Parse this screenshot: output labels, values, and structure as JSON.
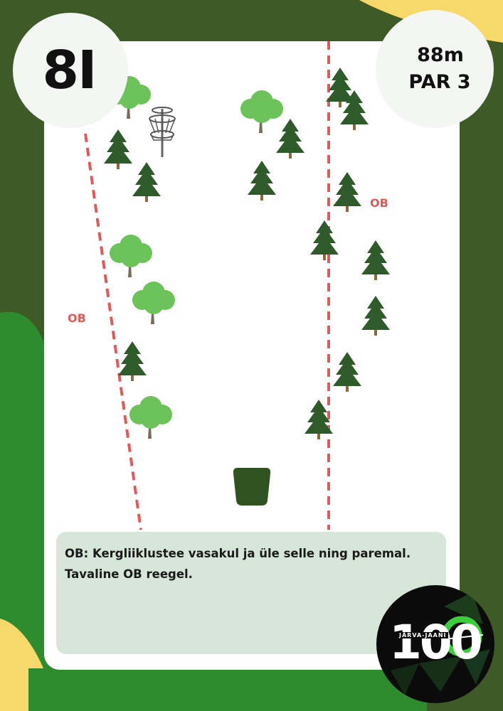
{
  "hole": {
    "number": "8I"
  },
  "info": {
    "distance": "88m",
    "par": "PAR 3"
  },
  "ob_labels": {
    "left": "OB",
    "right": "OB"
  },
  "notes": {
    "line1": "OB: Kergliiklustee vasakul ja üle selle ning paremal.",
    "line2": "Tavaline OB reegel."
  },
  "logo": {
    "number": "100",
    "subtitle": "JÄRVA-JAANI"
  },
  "colors": {
    "background": "#3d5a27",
    "accent_green": "#2e8b2e",
    "accent_yellow": "#f7d86a",
    "ob_line": "#e05a5a",
    "tee": "#2f5220",
    "conifer": "#2f5a2a",
    "deciduous": "#6cc35a",
    "notes_box": "#d6e6d8"
  },
  "icons": {
    "basket": "disc-golf-basket-icon",
    "conifer": "conifer-tree-icon",
    "deciduous": "deciduous-tree-icon",
    "tee": "tee-pad-icon"
  }
}
